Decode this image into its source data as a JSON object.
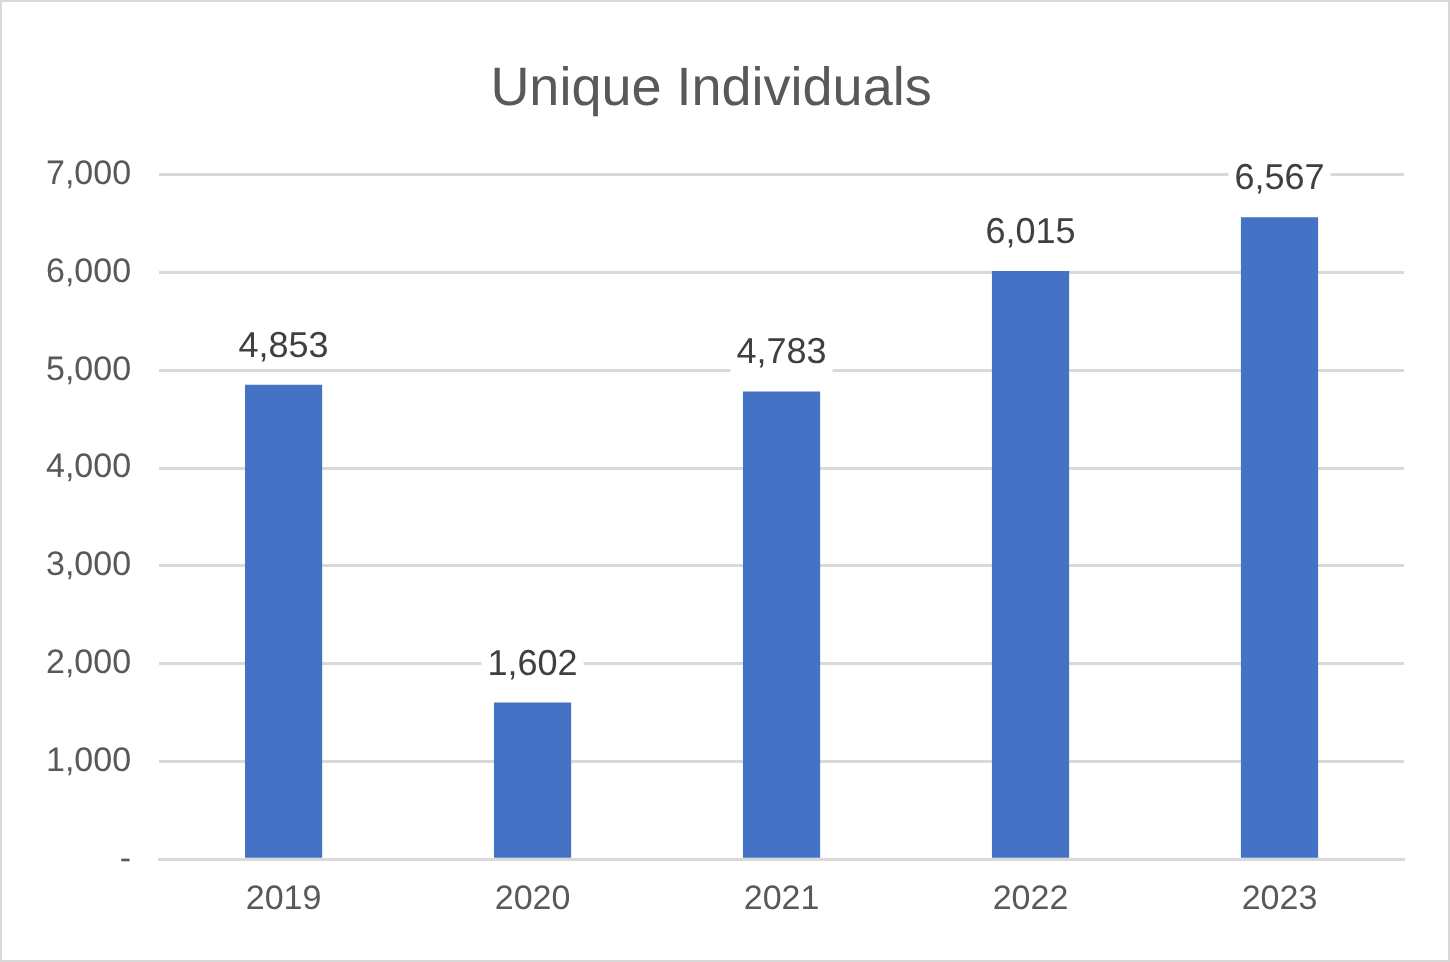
{
  "chart_data": {
    "type": "bar",
    "title": "Unique Individuals",
    "categories": [
      "2019",
      "2020",
      "2021",
      "2022",
      "2023"
    ],
    "values": [
      4853,
      1602,
      4783,
      6015,
      6567
    ],
    "value_labels": [
      "4,853",
      "1,602",
      "4,783",
      "6,015",
      "6,567"
    ],
    "color": "#4472c4",
    "ylim": [
      0,
      7000
    ],
    "yticks": [
      {
        "value": 0,
        "label": "-"
      },
      {
        "value": 1000,
        "label": "1,000"
      },
      {
        "value": 2000,
        "label": "2,000"
      },
      {
        "value": 3000,
        "label": "3,000"
      },
      {
        "value": 4000,
        "label": "4,000"
      },
      {
        "value": 5000,
        "label": "5,000"
      },
      {
        "value": 6000,
        "label": "6,000"
      },
      {
        "value": 7000,
        "label": "7,000"
      }
    ],
    "grid": "y",
    "legend": false
  }
}
